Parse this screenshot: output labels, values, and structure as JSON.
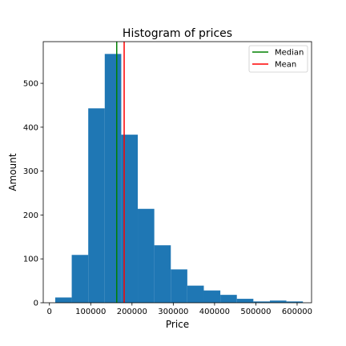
{
  "chart_data": {
    "type": "bar",
    "title": "Histogram of prices",
    "xlabel": "Price",
    "ylabel": "Amount",
    "xlim": [
      -15000,
      635000
    ],
    "ylim": [
      0,
      595
    ],
    "xticks": [
      0,
      100000,
      200000,
      300000,
      400000,
      500000,
      600000
    ],
    "yticks": [
      0,
      100,
      200,
      300,
      400,
      500
    ],
    "bin_edges": [
      14000,
      54000,
      94000,
      134000,
      174000,
      214000,
      254000,
      294000,
      334000,
      374000,
      414000,
      454000,
      494000,
      534000,
      574000,
      614000
    ],
    "counts": [
      12,
      109,
      443,
      567,
      383,
      214,
      131,
      76,
      39,
      28,
      18,
      9,
      3,
      5,
      3
    ],
    "bar_color": "#1f77b4",
    "lines": [
      {
        "name": "Median",
        "x": 163000,
        "color": "#008000"
      },
      {
        "name": "Mean",
        "x": 181000,
        "color": "#ff0000"
      }
    ],
    "legend": {
      "placement": "top-right",
      "entries": [
        "Median",
        "Mean"
      ]
    },
    "grid": false
  }
}
